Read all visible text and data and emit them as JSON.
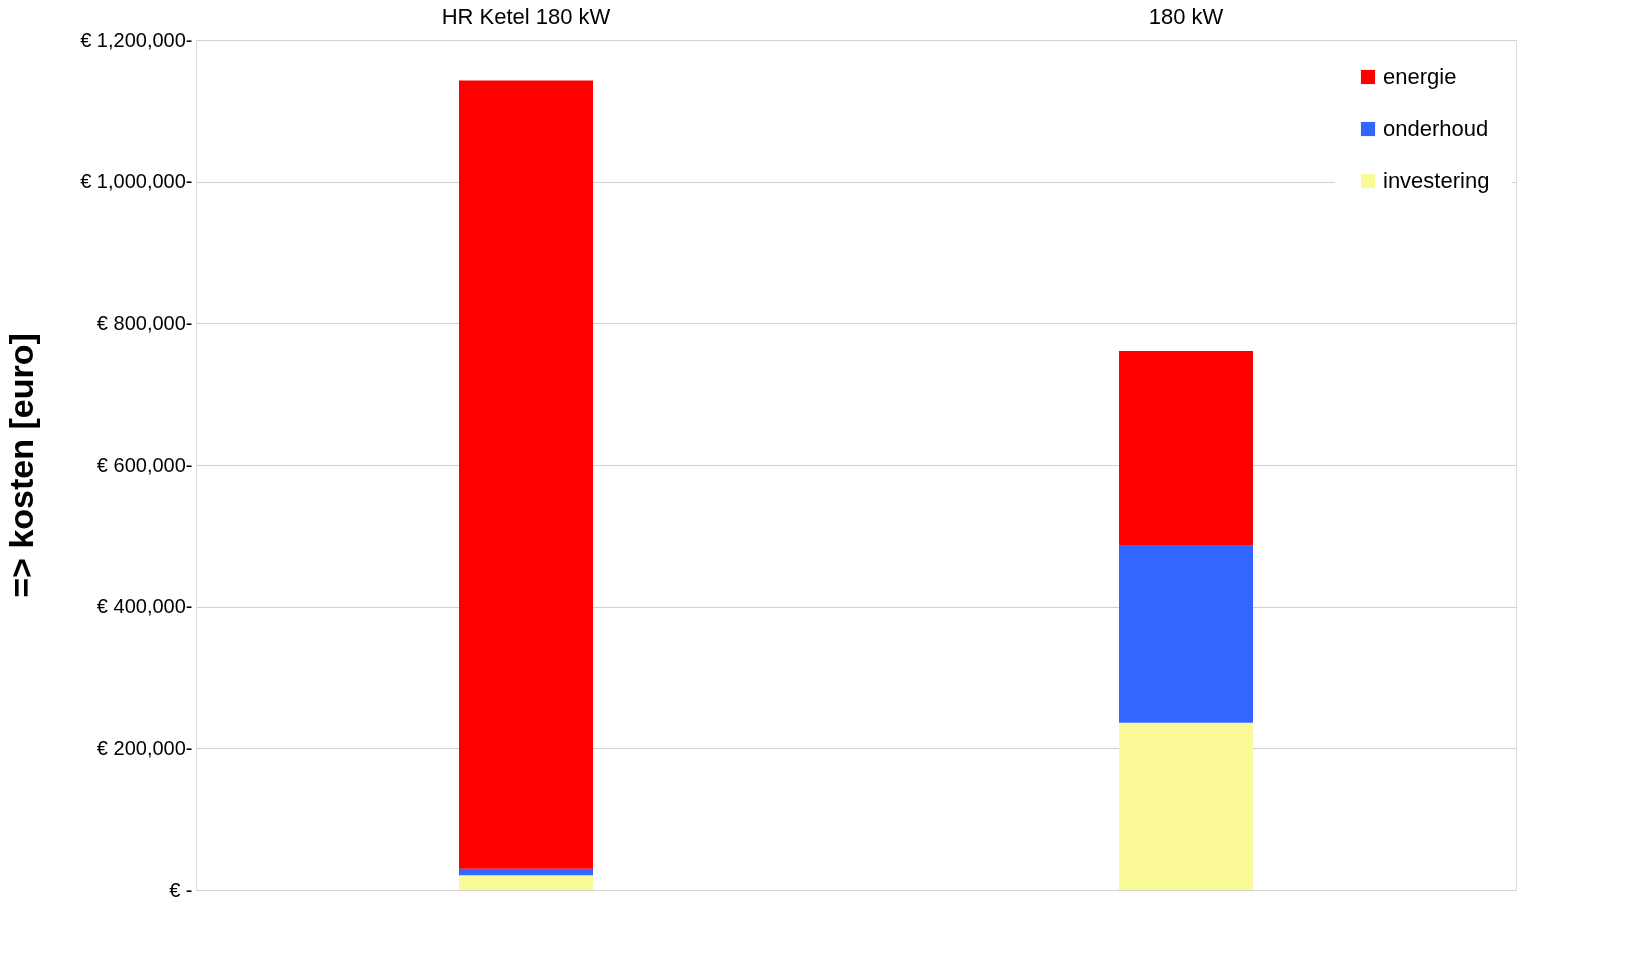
{
  "chart_data": {
    "type": "bar",
    "stacked": true,
    "ylabel": "=> kosten [euro]",
    "categories": [
      "HR Ketel 180 kW",
      "180 kW"
    ],
    "series": [
      {
        "name": "investering",
        "color": "#fafa99",
        "values": [
          21000,
          236000
        ]
      },
      {
        "name": "onderhoud",
        "color": "#3366ff",
        "values": [
          9000,
          250000
        ]
      },
      {
        "name": "energie",
        "color": "#ff0000",
        "values": [
          1113000,
          275000
        ]
      }
    ],
    "ylim": [
      0,
      1200000
    ],
    "yticks": [
      {
        "value": 0,
        "label": "€ -"
      },
      {
        "value": 200000,
        "label": "€ 200,000-"
      },
      {
        "value": 400000,
        "label": "€ 400,000-"
      },
      {
        "value": 600000,
        "label": "€ 600,000-"
      },
      {
        "value": 800000,
        "label": "€ 800,000-"
      },
      {
        "value": 1000000,
        "label": "€ 1,000,000-"
      },
      {
        "value": 1200000,
        "label": "€ 1,200,000-"
      }
    ],
    "grid": "y",
    "legend": "top right"
  }
}
